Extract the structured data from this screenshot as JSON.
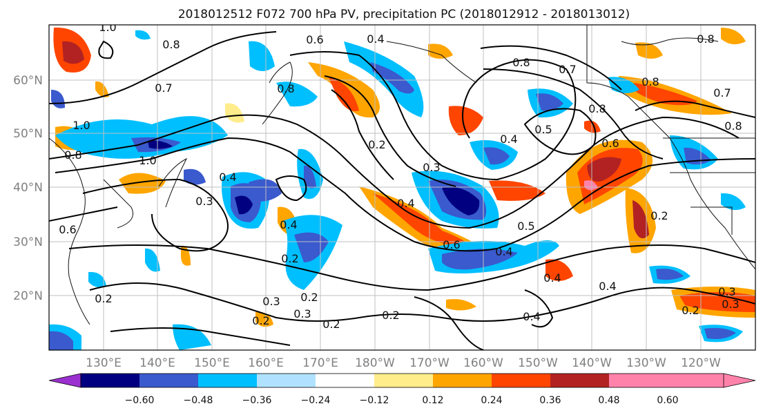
{
  "title": "2018012512 F072 700 hPa PV, precipitation PC (2018012912 - 2018013012)",
  "map": {
    "lat_labels": [
      "60°N",
      "50°N",
      "40°N",
      "30°N",
      "20°N"
    ],
    "lon_labels": [
      "130°E",
      "140°E",
      "150°E",
      "160°E",
      "170°E",
      "180°W",
      "170°W",
      "160°W",
      "150°W",
      "140°W",
      "130°W",
      "120°W"
    ],
    "grid": true,
    "contour_labels": [
      "1.0",
      "0.8",
      "0.6",
      "0.4",
      "0.8",
      "0.7",
      "0.7",
      "1.0",
      "0.8",
      "0.8",
      "0.2",
      "0.8",
      "0.7",
      "0.8",
      "0.5",
      "0.4",
      "0.8",
      "1.0",
      "0.8",
      "0.6",
      "0.4",
      "0.3",
      "0.6",
      "0.4",
      "0.2",
      "0.6",
      "0.3",
      "0.4",
      "0.5",
      "0.4",
      "0.3",
      "0.2",
      "0.2",
      "0.3",
      "0.2",
      "0.2",
      "0.4",
      "0.4",
      "0.4",
      "0.2",
      "0.3",
      "0.2",
      "0.2",
      "0.3"
    ]
  },
  "colorbar": {
    "ticks": [
      "−0.60",
      "−0.48",
      "−0.36",
      "−0.24",
      "−0.12",
      "0.12",
      "0.24",
      "0.36",
      "0.48",
      "0.60"
    ],
    "colors": [
      "#9b30d0",
      "#000080",
      "#3a5acd",
      "#00bfff",
      "#b0e2ff",
      "#ffffff",
      "#ffec8b",
      "#ffa500",
      "#ff4500",
      "#b22222",
      "#ff82ab"
    ]
  }
}
